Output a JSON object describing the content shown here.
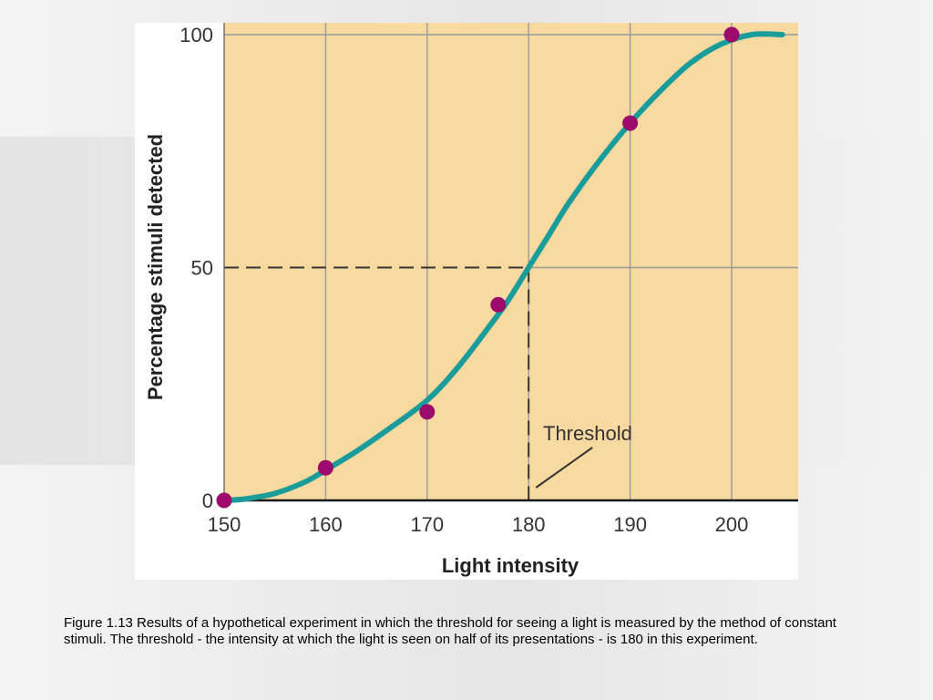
{
  "chart_data": {
    "type": "line",
    "title": "",
    "xlabel": "Light intensity",
    "ylabel": "Percentage stimuli detected",
    "xlim": [
      150,
      205
    ],
    "ylim": [
      0,
      100
    ],
    "x_ticks": [
      150,
      160,
      170,
      180,
      190,
      200
    ],
    "y_ticks": [
      0,
      50,
      100
    ],
    "grid": true,
    "background_color": "#f8d9a0",
    "curve_color": "#1a9c9a",
    "point_color": "#9c0a6b",
    "points": [
      {
        "x": 150,
        "y": 0
      },
      {
        "x": 160,
        "y": 7
      },
      {
        "x": 170,
        "y": 19
      },
      {
        "x": 177,
        "y": 42
      },
      {
        "x": 190,
        "y": 81
      },
      {
        "x": 200,
        "y": 100
      }
    ],
    "curve": [
      {
        "x": 150,
        "y": 0
      },
      {
        "x": 152,
        "y": 0.3
      },
      {
        "x": 155,
        "y": 1.5
      },
      {
        "x": 158,
        "y": 4
      },
      {
        "x": 160,
        "y": 6.5
      },
      {
        "x": 163,
        "y": 10.5
      },
      {
        "x": 166,
        "y": 15
      },
      {
        "x": 170,
        "y": 21.5
      },
      {
        "x": 173,
        "y": 28.5
      },
      {
        "x": 176,
        "y": 37
      },
      {
        "x": 178,
        "y": 43
      },
      {
        "x": 180,
        "y": 50
      },
      {
        "x": 182,
        "y": 57
      },
      {
        "x": 184,
        "y": 64
      },
      {
        "x": 187,
        "y": 73
      },
      {
        "x": 190,
        "y": 81
      },
      {
        "x": 193,
        "y": 88
      },
      {
        "x": 196,
        "y": 94
      },
      {
        "x": 199,
        "y": 98
      },
      {
        "x": 202,
        "y": 100
      },
      {
        "x": 205,
        "y": 100
      }
    ],
    "threshold": {
      "x": 180,
      "y": 50,
      "label": "Threshold"
    }
  },
  "caption": "Figure 1.13 Results of a hypothetical experiment in which the threshold for seeing a light is measured by the method of constant stimuli.  The threshold - the intensity at which the light is seen on half of its presentations - is 180 in this experiment."
}
